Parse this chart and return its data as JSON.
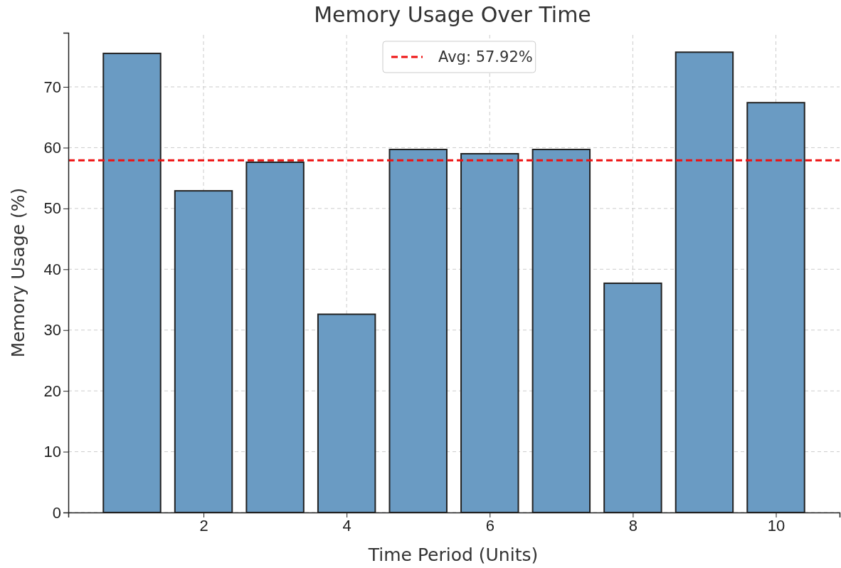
{
  "chart_data": {
    "type": "bar",
    "title": "Memory Usage Over Time",
    "xlabel": "Time Period (Units)",
    "ylabel": "Memory Usage (%)",
    "x": [
      1,
      2,
      3,
      4,
      5,
      6,
      7,
      8,
      9,
      10
    ],
    "values": [
      75.5,
      52.9,
      57.6,
      32.6,
      59.7,
      59.0,
      59.7,
      37.7,
      75.7,
      67.4
    ],
    "color": "#6a9bc3",
    "xlim": [
      0.11,
      10.89
    ],
    "xticks": [
      2,
      4,
      6,
      8,
      10
    ],
    "ylim": [
      0,
      78.9
    ],
    "yticks": [
      0,
      10,
      20,
      30,
      40,
      50,
      60,
      70
    ],
    "grid": true,
    "legend": "top",
    "ref_lines": [
      {
        "axis": "y",
        "value": 57.92,
        "label": "Avg: 57.92%",
        "color": "#ee1111",
        "line_style": "dashed"
      }
    ]
  }
}
